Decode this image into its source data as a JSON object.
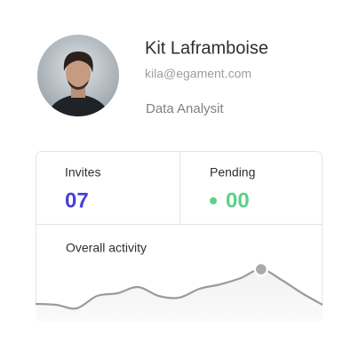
{
  "profile": {
    "name": "Kit Laframboise",
    "email": "kila@egament.com",
    "role": "Data Analysit"
  },
  "stats": [
    {
      "label": "Invites",
      "value": "07"
    },
    {
      "label": "Pending",
      "value": "00"
    }
  ],
  "activity": {
    "label": "Overall activity",
    "values": [
      18,
      17,
      13,
      27,
      30,
      37,
      27,
      25,
      35,
      40,
      47,
      57,
      45,
      30,
      17
    ]
  }
}
